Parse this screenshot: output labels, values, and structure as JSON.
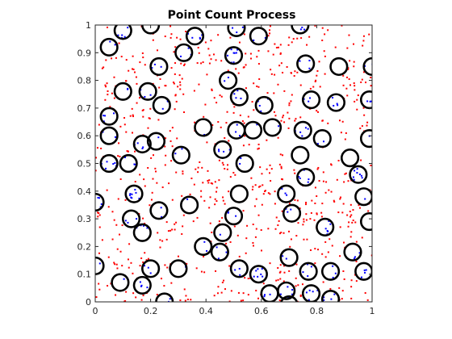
{
  "chart_data": {
    "type": "scatter",
    "title": "Point Count Process",
    "xlabel": "",
    "ylabel": "",
    "xlim": [
      0,
      1
    ],
    "ylim": [
      0,
      1
    ],
    "x_ticks": [
      "0",
      "0.2",
      "0.4",
      "0.6",
      "0.8",
      "1"
    ],
    "y_ticks": [
      "0",
      "0.1",
      "0.2",
      "0.3",
      "0.4",
      "0.5",
      "0.6",
      "0.7",
      "0.8",
      "0.9",
      "1"
    ],
    "grid": false,
    "legend": "none",
    "colors": {
      "circle": "#000000",
      "inside_point": "#0000ff",
      "outside_point": "#ff0000",
      "axes": "#262626"
    },
    "circle_radius": 0.03,
    "series": [
      {
        "kind": "circles",
        "points": [
          [
            0.05,
            0.92
          ],
          [
            0.1,
            0.98
          ],
          [
            0.2,
            1.0
          ],
          [
            0.36,
            0.96
          ],
          [
            0.51,
            0.99
          ],
          [
            0.59,
            0.96
          ],
          [
            0.74,
            1.0
          ],
          [
            0.32,
            0.9
          ],
          [
            0.5,
            0.89
          ],
          [
            0.23,
            0.85
          ],
          [
            0.76,
            0.86
          ],
          [
            0.88,
            0.85
          ],
          [
            1.0,
            0.85
          ],
          [
            0.48,
            0.8
          ],
          [
            0.1,
            0.76
          ],
          [
            0.19,
            0.76
          ],
          [
            0.52,
            0.74
          ],
          [
            0.78,
            0.73
          ],
          [
            0.87,
            0.72
          ],
          [
            0.99,
            0.73
          ],
          [
            0.24,
            0.71
          ],
          [
            0.61,
            0.71
          ],
          [
            0.05,
            0.67
          ],
          [
            0.39,
            0.63
          ],
          [
            0.51,
            0.62
          ],
          [
            0.57,
            0.62
          ],
          [
            0.64,
            0.63
          ],
          [
            0.75,
            0.62
          ],
          [
            0.05,
            0.6
          ],
          [
            0.22,
            0.58
          ],
          [
            0.17,
            0.57
          ],
          [
            0.82,
            0.59
          ],
          [
            0.99,
            0.59
          ],
          [
            0.46,
            0.55
          ],
          [
            0.74,
            0.53
          ],
          [
            0.31,
            0.53
          ],
          [
            0.54,
            0.5
          ],
          [
            0.05,
            0.5
          ],
          [
            0.12,
            0.5
          ],
          [
            0.92,
            0.52
          ],
          [
            0.95,
            0.46
          ],
          [
            0.76,
            0.45
          ],
          [
            0.14,
            0.39
          ],
          [
            0.52,
            0.39
          ],
          [
            0.69,
            0.39
          ],
          [
            0.97,
            0.38
          ],
          [
            0.0,
            0.36
          ],
          [
            0.34,
            0.35
          ],
          [
            0.23,
            0.33
          ],
          [
            0.71,
            0.32
          ],
          [
            0.5,
            0.31
          ],
          [
            0.13,
            0.3
          ],
          [
            0.99,
            0.29
          ],
          [
            0.17,
            0.25
          ],
          [
            0.46,
            0.25
          ],
          [
            0.83,
            0.27
          ],
          [
            0.39,
            0.2
          ],
          [
            0.45,
            0.18
          ],
          [
            0.93,
            0.18
          ],
          [
            0.7,
            0.16
          ],
          [
            0.2,
            0.12
          ],
          [
            0.3,
            0.12
          ],
          [
            0.52,
            0.12
          ],
          [
            0.0,
            0.13
          ],
          [
            0.59,
            0.1
          ],
          [
            0.77,
            0.11
          ],
          [
            0.85,
            0.11
          ],
          [
            0.97,
            0.11
          ],
          [
            0.09,
            0.07
          ],
          [
            0.17,
            0.06
          ],
          [
            0.63,
            0.03
          ],
          [
            0.69,
            0.04
          ],
          [
            0.78,
            0.03
          ],
          [
            0.85,
            0.01
          ],
          [
            0.25,
            0.0
          ],
          [
            0.7,
            -0.01
          ]
        ]
      },
      {
        "kind": "inside_points",
        "count": 240
      },
      {
        "kind": "outside_points",
        "count": 700
      }
    ]
  }
}
